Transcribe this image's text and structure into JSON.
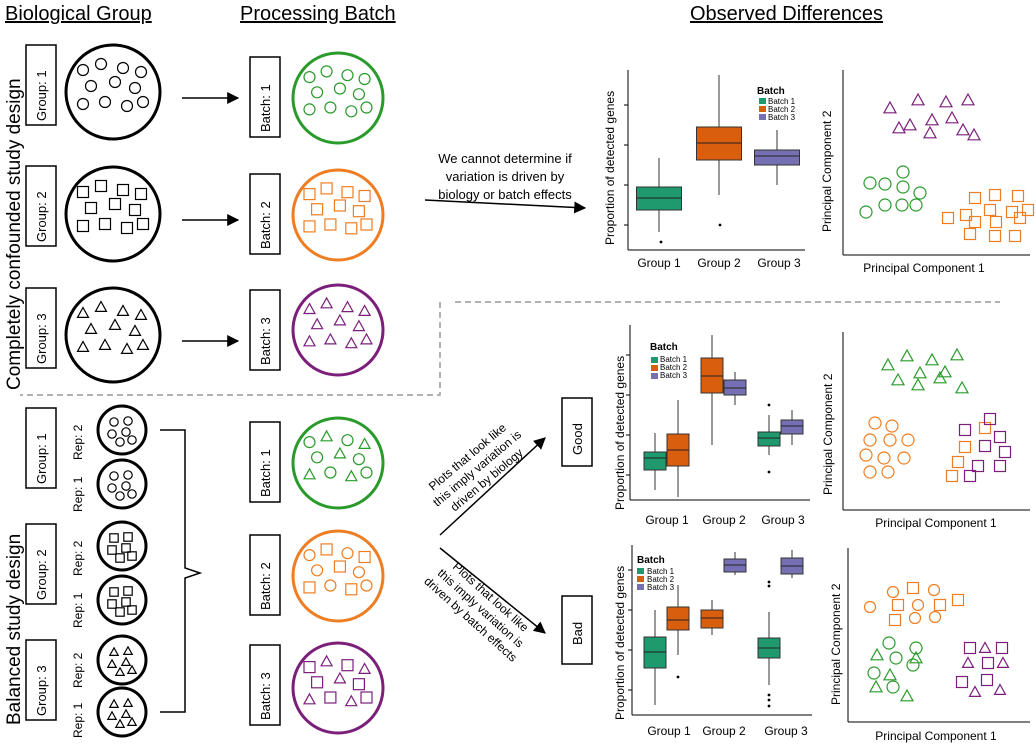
{
  "headers": {
    "biological_group": "Biological Group",
    "processing_batch": "Processing Batch",
    "observed_differences": "Observed Differences"
  },
  "side_labels": {
    "confounded": "Completely confounded study design",
    "balanced": "Balanced study design"
  },
  "groups": [
    "Group: 1",
    "Group: 2",
    "Group: 3"
  ],
  "batches": [
    "Batch: 1",
    "Batch: 2",
    "Batch: 3"
  ],
  "reps": [
    "Rep: 2",
    "Rep: 1"
  ],
  "notes": {
    "confounded_line1": "We cannot determine if",
    "confounded_line2": "variation is driven by",
    "confounded_line3": "biology or batch effects",
    "good_line1": "Plots that look like",
    "good_line2": "this imply variation is",
    "good_line3": "driven by biology",
    "bad_line1": "Plots that look like",
    "bad_line2": "this imply variation is",
    "bad_line3": "driven by batch effects"
  },
  "outcomes": {
    "good": "Good",
    "bad": "Bad"
  },
  "axes": {
    "box_ylabel": "Proportion of detected genes",
    "pc1": "Principal Component 1",
    "pc2": "Principal Component 2",
    "x_groups": [
      "Group 1",
      "Group 2",
      "Group 3"
    ]
  },
  "legend": {
    "title": "Batch",
    "entries": [
      "Batch 1",
      "Batch 2",
      "Batch 3"
    ]
  },
  "colors": {
    "batch1": "#1e9a6e",
    "batch2": "#d95f0e",
    "batch3": "#7570b3",
    "green_outline": "#2a9a2a",
    "orange_outline": "#ef7d22",
    "purple_outline": "#7b1f7b",
    "dashed": "#999999"
  }
}
